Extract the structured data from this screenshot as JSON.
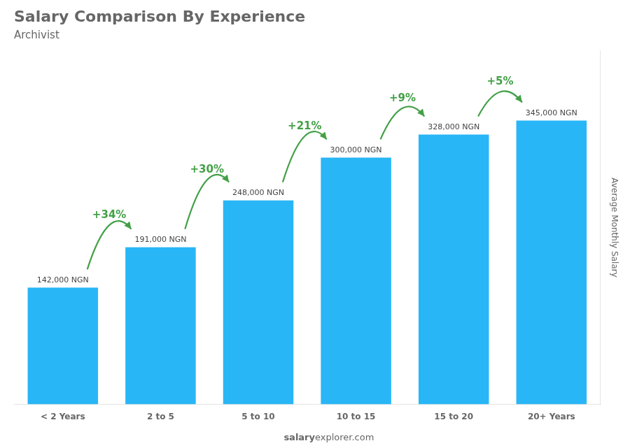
{
  "chart_data": {
    "type": "bar",
    "title": "Salary Comparison By Experience",
    "subtitle": "Archivist",
    "categories": [
      "< 2 Years",
      "2 to 5",
      "5 to 10",
      "10 to 15",
      "15 to 20",
      "20+ Years"
    ],
    "values": [
      142000,
      191000,
      248000,
      300000,
      328000,
      345000
    ],
    "value_labels": [
      "142,000 NGN",
      "191,000 NGN",
      "248,000 NGN",
      "300,000 NGN",
      "328,000 NGN",
      "345,000 NGN"
    ],
    "data_labels": true,
    "color": "#29b6f6",
    "ylabel": "Average Monthly Salary",
    "ylim": [
      0,
      430000
    ],
    "yticks": [],
    "tick_labels": "x",
    "grid": false,
    "annotations": [
      {
        "text": "+34%",
        "color": "#43a047"
      },
      {
        "text": "+30%",
        "color": "#43a047"
      },
      {
        "text": "+21%",
        "color": "#43a047"
      },
      {
        "text": "+9%",
        "color": "#43a047"
      },
      {
        "text": "+5%",
        "color": "#43a047"
      }
    ],
    "footer": [
      "salary",
      "explorer.com"
    ]
  }
}
